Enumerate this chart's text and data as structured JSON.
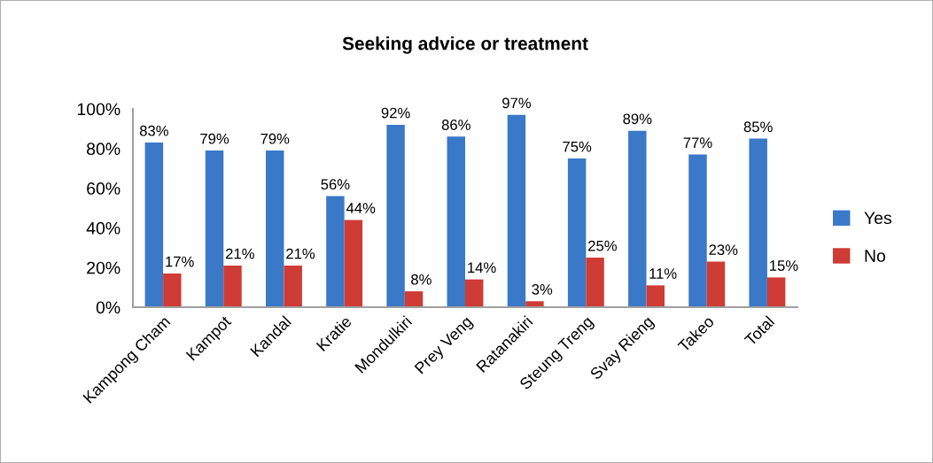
{
  "chart_data": {
    "type": "bar",
    "title": "Seeking advice or treatment",
    "categories": [
      "Kampong Cham",
      "Kampot",
      "Kandal",
      "Kratie",
      "Mondulkiri",
      "Prey Veng",
      "Ratanakiri",
      "Steung Treng",
      "Svay Rieng",
      "Takeo",
      "Total"
    ],
    "series": [
      {
        "name": "Yes",
        "color": "#3a78c8",
        "values": [
          83,
          79,
          79,
          56,
          92,
          86,
          97,
          75,
          89,
          77,
          85
        ],
        "value_labels": [
          "83%",
          "79%",
          "79%",
          "56%",
          "92%",
          "86%",
          "97%",
          "75%",
          "89%",
          "77%",
          "85%"
        ]
      },
      {
        "name": "No",
        "color": "#cf3b35",
        "values": [
          17,
          21,
          21,
          44,
          8,
          14,
          3,
          25,
          11,
          23,
          15
        ],
        "value_labels": [
          "17%",
          "21%",
          "21%",
          "44%",
          "8%",
          "14%",
          "3%",
          "25%",
          "11%",
          "23%",
          "15%"
        ]
      }
    ],
    "ylim": [
      0,
      100
    ],
    "yticks": [
      {
        "value": 0,
        "label": "0%"
      },
      {
        "value": 20,
        "label": "20%"
      },
      {
        "value": 40,
        "label": "40%"
      },
      {
        "value": 60,
        "label": "60%"
      },
      {
        "value": 80,
        "label": "80%"
      },
      {
        "value": 100,
        "label": "100%"
      }
    ],
    "legend": "right",
    "grid": false
  }
}
